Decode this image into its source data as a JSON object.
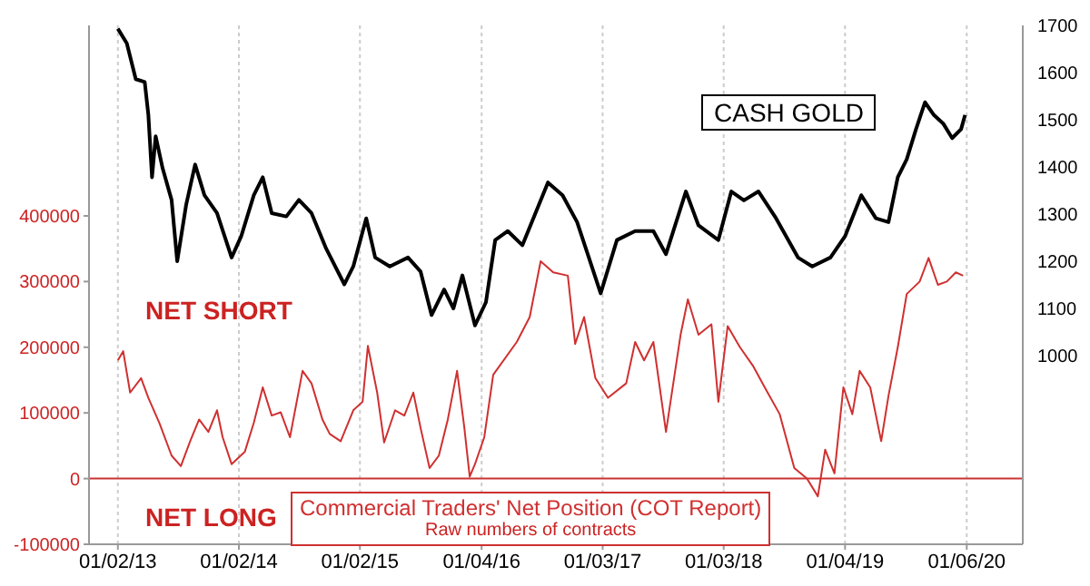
{
  "chart_data": {
    "type": "line",
    "xlim": [
      "2012-10-07",
      "2020-06-23"
    ],
    "xticks": [
      {
        "value": "2013-01-02",
        "label": "01/02/13"
      },
      {
        "value": "2014-01-02",
        "label": "01/02/14"
      },
      {
        "value": "2015-01-02",
        "label": "01/02/15"
      },
      {
        "value": "2016-01-04",
        "label": "01/04/16"
      },
      {
        "value": "2017-01-03",
        "label": "01/03/17"
      },
      {
        "value": "2018-01-03",
        "label": "01/03/18"
      },
      {
        "value": "2019-01-04",
        "label": "01/04/19"
      },
      {
        "value": "2020-01-06",
        "label": "01/06/20"
      }
    ],
    "ylim": [
      -100000,
      690000
    ],
    "yticks": [
      -100000,
      0,
      100000,
      200000,
      300000,
      400000
    ],
    "y2lim": [
      600,
      1700
    ],
    "y2ticks": [
      1000,
      1100,
      1200,
      1300,
      1400,
      1500,
      1600,
      1700
    ],
    "grid": "x",
    "marker": "none",
    "line_style": "solid",
    "ref_lines": [
      {
        "axis": "y",
        "value": 0,
        "color": "#cc3333"
      }
    ],
    "annotations": [
      "NET SHORT",
      "NET LONG",
      "Raw numbers of contracts"
    ],
    "series": [
      {
        "name": "CASH GOLD",
        "color": "#000000",
        "axis": "y2",
        "x": [
          "2013-01-02",
          "2013-01-29",
          "2013-02-25",
          "2013-03-24",
          "2013-04-04",
          "2013-04-15",
          "2013-04-26",
          "2013-05-17",
          "2013-06-13",
          "2013-06-30",
          "2013-07-27",
          "2013-08-23",
          "2013-09-20",
          "2013-10-28",
          "2013-12-11",
          "2014-01-09",
          "2014-02-16",
          "2014-03-15",
          "2014-04-11",
          "2014-05-25",
          "2014-07-02",
          "2014-08-09",
          "2014-09-22",
          "2014-11-16",
          "2014-12-13",
          "2015-01-21",
          "2015-02-17",
          "2015-04-02",
          "2015-05-27",
          "2015-07-04",
          "2015-08-06",
          "2015-09-13",
          "2015-10-11",
          "2015-11-07",
          "2015-12-15",
          "2016-01-17",
          "2016-02-14",
          "2016-03-23",
          "2016-05-06",
          "2016-07-22",
          "2016-09-04",
          "2016-10-18",
          "2016-12-28",
          "2017-02-15",
          "2017-04-11",
          "2017-06-05",
          "2017-07-13",
          "2017-09-11",
          "2017-10-19",
          "2017-12-18",
          "2018-01-26",
          "2018-03-05",
          "2018-04-18",
          "2018-06-10",
          "2018-08-15",
          "2018-09-27",
          "2018-11-21",
          "2019-01-04",
          "2019-02-22",
          "2019-04-07",
          "2019-05-15",
          "2019-06-12",
          "2019-07-09",
          "2019-08-06",
          "2019-09-02",
          "2019-09-29",
          "2019-10-27",
          "2019-11-23",
          "2019-12-20",
          "2020-01-01"
        ],
        "values": [
          1693,
          1662,
          1586,
          1580,
          1510,
          1378,
          1465,
          1397,
          1330,
          1200,
          1320,
          1405,
          1340,
          1302,
          1208,
          1253,
          1340,
          1378,
          1302,
          1295,
          1330,
          1302,
          1227,
          1151,
          1189,
          1291,
          1208,
          1189,
          1208,
          1178,
          1086,
          1140,
          1100,
          1170,
          1064,
          1113,
          1245,
          1264,
          1234,
          1367,
          1340,
          1283,
          1132,
          1245,
          1264,
          1264,
          1215,
          1348,
          1276,
          1245,
          1348,
          1329,
          1348,
          1291,
          1208,
          1189,
          1208,
          1253,
          1340,
          1291,
          1283,
          1378,
          1416,
          1480,
          1537,
          1510,
          1492,
          1461,
          1480,
          1510
        ]
      },
      {
        "name": "Commercial Traders' Net Position (COT Report)",
        "color": "#d03030",
        "x": [
          "2013-01-02",
          "2013-01-18",
          "2013-02-08",
          "2013-03-13",
          "2013-04-04",
          "2013-05-07",
          "2013-06-13",
          "2013-07-11",
          "2013-08-08",
          "2013-09-04",
          "2013-10-02",
          "2013-10-28",
          "2013-11-14",
          "2013-12-11",
          "2014-01-20",
          "2014-02-16",
          "2014-03-15",
          "2014-04-11",
          "2014-05-08",
          "2014-06-05",
          "2014-07-13",
          "2014-08-09",
          "2014-09-11",
          "2014-10-03",
          "2014-11-05",
          "2014-12-13",
          "2015-01-10",
          "2015-01-26",
          "2015-02-23",
          "2015-03-16",
          "2015-04-18",
          "2015-05-16",
          "2015-06-12",
          "2015-07-04",
          "2015-07-31",
          "2015-08-28",
          "2015-09-24",
          "2015-10-22",
          "2015-11-13",
          "2015-11-29",
          "2015-12-15",
          "2016-01-12",
          "2016-02-08",
          "2016-04-19",
          "2016-05-28",
          "2016-06-30",
          "2016-08-07",
          "2016-09-20",
          "2016-10-12",
          "2016-11-08",
          "2016-12-12",
          "2017-01-19",
          "2017-03-15",
          "2017-04-11",
          "2017-05-08",
          "2017-06-05",
          "2017-07-13",
          "2017-08-26",
          "2017-09-17",
          "2017-10-19",
          "2017-11-27",
          "2017-12-18",
          "2018-01-15",
          "2018-02-21",
          "2018-04-01",
          "2018-05-09",
          "2018-06-21",
          "2018-08-04",
          "2018-09-11",
          "2018-10-14",
          "2018-11-05",
          "2018-12-03",
          "2018-12-30",
          "2019-01-26",
          "2019-02-17",
          "2019-03-21",
          "2019-04-23",
          "2019-05-15",
          "2019-06-12",
          "2019-07-09",
          "2019-08-17",
          "2019-09-13",
          "2019-10-11",
          "2019-11-07",
          "2019-12-04",
          "2019-12-26"
        ],
        "values": [
          180000,
          194000,
          131000,
          153000,
          123000,
          85000,
          35000,
          19000,
          57000,
          90000,
          71000,
          104000,
          63000,
          22000,
          41000,
          85000,
          139000,
          96000,
          101000,
          63000,
          164000,
          145000,
          90000,
          68000,
          57000,
          104000,
          117000,
          202000,
          131000,
          55000,
          104000,
          96000,
          131000,
          77000,
          16000,
          35000,
          90000,
          164000,
          77000,
          3000,
          22000,
          63000,
          158000,
          208000,
          246000,
          331000,
          314000,
          309000,
          205000,
          246000,
          153000,
          123000,
          145000,
          208000,
          180000,
          208000,
          71000,
          219000,
          273000,
          219000,
          235000,
          117000,
          232000,
          200000,
          172000,
          137000,
          98000,
          16000,
          0,
          -27000,
          44000,
          8000,
          139000,
          98000,
          164000,
          139000,
          57000,
          126000,
          200000,
          281000,
          300000,
          336000,
          295000,
          300000,
          314000,
          309000
        ]
      }
    ]
  }
}
